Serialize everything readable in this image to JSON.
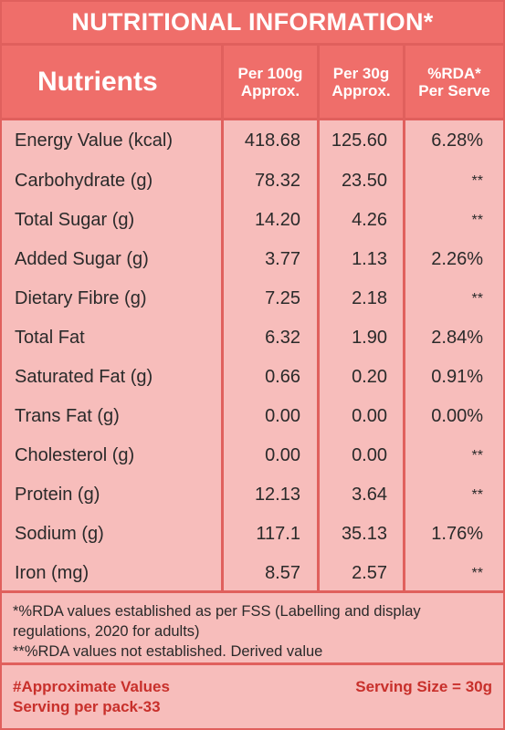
{
  "title": "NUTRITIONAL INFORMATION*",
  "header": {
    "nutrients": "Nutrients",
    "per100_line1": "Per 100g",
    "per100_line2": "Approx.",
    "per30_line1": "Per 30g",
    "per30_line2": "Approx.",
    "rda_line1": "%RDA*",
    "rda_line2": "Per Serve"
  },
  "rows": [
    {
      "name": "Energy Value (kcal)",
      "per100": "418.68",
      "per30": "125.60",
      "rda": "6.28%"
    },
    {
      "name": "Carbohydrate (g)",
      "per100": "78.32",
      "per30": "23.50",
      "rda": "**"
    },
    {
      "name": "Total Sugar (g)",
      "per100": "14.20",
      "per30": "4.26",
      "rda": "**"
    },
    {
      "name": "Added Sugar (g)",
      "per100": "3.77",
      "per30": "1.13",
      "rda": "2.26%"
    },
    {
      "name": "Dietary Fibre (g)",
      "per100": "7.25",
      "per30": "2.18",
      "rda": "**"
    },
    {
      "name": "Total Fat",
      "per100": "6.32",
      "per30": "1.90",
      "rda": "2.84%"
    },
    {
      "name": "Saturated Fat (g)",
      "per100": "0.66",
      "per30": "0.20",
      "rda": "0.91%"
    },
    {
      "name": "Trans Fat (g)",
      "per100": "0.00",
      "per30": "0.00",
      "rda": "0.00%"
    },
    {
      "name": "Cholesterol (g)",
      "per100": "0.00",
      "per30": "0.00",
      "rda": "**"
    },
    {
      "name": "Protein (g)",
      "per100": "12.13",
      "per30": "3.64",
      "rda": "**"
    },
    {
      "name": "Sodium (g)",
      "per100": "117.1",
      "per30": "35.13",
      "rda": "1.76%"
    },
    {
      "name": "Iron (mg)",
      "per100": "8.57",
      "per30": "2.57",
      "rda": "**"
    }
  ],
  "notes": {
    "line1": "*%RDA values established as per FSS (Labelling and display",
    "line2": "regulations, 2020 for adults)",
    "line3": "**%RDA values not established. Derived value"
  },
  "footer": {
    "approx": "#Approximate Values",
    "serving_size": "Serving Size = 30g",
    "serving_per_pack": "Serving per pack-33"
  },
  "colors": {
    "header_bg": "#ef6e6a",
    "body_bg": "#f7bdbb",
    "border": "#e0605d",
    "footer_text": "#c8302b"
  }
}
